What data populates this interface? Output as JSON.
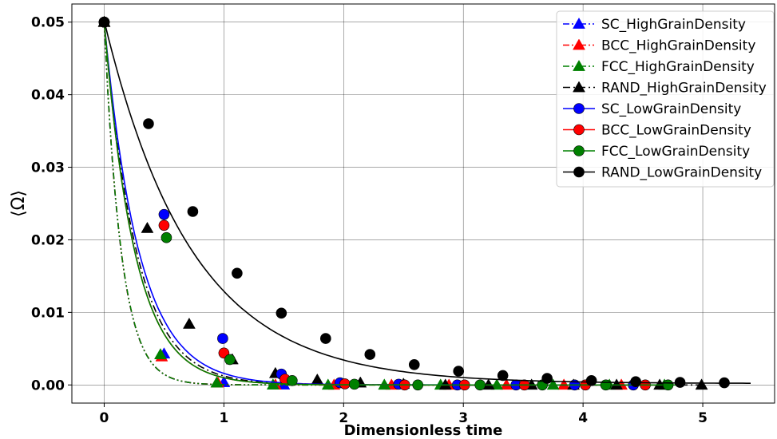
{
  "chart_data": {
    "type": "line",
    "title": "",
    "xlabel": "Dimensionless time",
    "ylabel": "⟨Ω⟩",
    "xlim": [
      -0.27,
      5.6
    ],
    "ylim": [
      -0.0025,
      0.0525
    ],
    "xticks": [
      0,
      1,
      2,
      3,
      4,
      5
    ],
    "xtick_labels": [
      "0",
      "1",
      "2",
      "3",
      "4",
      "5"
    ],
    "yticks": [
      0.0,
      0.01,
      0.02,
      0.03,
      0.04,
      0.05
    ],
    "ytick_labels": [
      "0.00",
      "0.01",
      "0.02",
      "0.03",
      "0.04",
      "0.05"
    ],
    "grid": true,
    "legend_position": "top-right",
    "series": [
      {
        "name": "SC_HighGrainDensity",
        "color": "#0000ff",
        "marker": "triangle",
        "linestyle": "dash-dot-dot",
        "decay": 0.142,
        "x_end": 1.55,
        "x": [
          0,
          0.5,
          1.0,
          1.5
        ],
        "y": [
          0.05,
          0.0043,
          0.00036,
          3e-05
        ]
      },
      {
        "name": "BCC_HighGrainDensity",
        "color": "#ff0000",
        "marker": "triangle",
        "linestyle": "dash-dot-dot",
        "decay": 0.142,
        "x_end": 4.4,
        "x": [
          0,
          0.48,
          0.95,
          1.43,
          1.92,
          2.4,
          2.88,
          3.36,
          3.84,
          4.32
        ],
        "y": [
          0.05,
          0.0039,
          0.0003,
          2e-05,
          0.0,
          0.0,
          0.0,
          0.0,
          0.0,
          0.0
        ]
      },
      {
        "name": "FCC_HighGrainDensity",
        "color": "#008000",
        "marker": "triangle",
        "linestyle": "dash-dot-dot",
        "decay": 0.142,
        "x_end": 4.8,
        "x": [
          0,
          0.47,
          0.94,
          1.41,
          1.87,
          2.34,
          2.81,
          3.28,
          3.75,
          4.22,
          4.68
        ],
        "y": [
          0.05,
          0.0042,
          0.0003,
          2e-05,
          0.0,
          0.0,
          0.0,
          0.0,
          0.0,
          0.0,
          0.0
        ]
      },
      {
        "name": "RAND_HighGrainDensity",
        "color": "#000000",
        "marker": "triangle",
        "linestyle": "dash-dot",
        "decay": 0.27,
        "x_end": 5.0,
        "x": [
          0,
          0.36,
          0.71,
          1.07,
          1.43,
          1.78,
          2.14,
          2.5,
          2.85,
          3.21,
          3.57,
          3.92,
          4.28,
          4.64,
          4.99
        ],
        "y": [
          0.05,
          0.0216,
          0.0084,
          0.0035,
          0.0016,
          0.0007,
          0.0003,
          0.00013,
          0.0,
          0.0,
          0.0,
          0.0,
          0.0,
          0.0,
          0.0
        ]
      },
      {
        "name": "SC_LowGrainDensity",
        "color": "#0000ff",
        "marker": "circle",
        "linestyle": "solid",
        "decay": 0.29,
        "x_end": 4.5,
        "x": [
          0,
          0.5,
          0.99,
          1.48,
          1.97,
          2.46,
          2.95,
          3.44,
          3.93,
          4.42
        ],
        "y": [
          0.05,
          0.0235,
          0.0064,
          0.0015,
          0.0003,
          0.0001,
          0.0,
          0.0,
          0.0,
          0.0
        ]
      },
      {
        "name": "BCC_LowGrainDensity",
        "color": "#ff0000",
        "marker": "circle",
        "linestyle": "solid",
        "decay": 0.255,
        "x_end": 4.6,
        "x": [
          0,
          0.5,
          1.0,
          1.51,
          2.01,
          2.51,
          3.01,
          3.51,
          4.02,
          4.52
        ],
        "y": [
          0.05,
          0.022,
          0.0044,
          0.0008,
          0.00015,
          0.0,
          0.0,
          0.0,
          0.0,
          0.0
        ]
      },
      {
        "name": "FCC_LowGrainDensity",
        "color": "#008000",
        "marker": "circle",
        "linestyle": "solid",
        "decay": 0.255,
        "x_end": 4.75,
        "x": [
          0,
          0.52,
          1.05,
          1.57,
          2.09,
          2.62,
          3.14,
          3.66,
          4.19,
          4.71
        ],
        "y": [
          0.05,
          0.0203,
          0.0035,
          0.0006,
          0.0001,
          0.0,
          0.0,
          0.0,
          0.0,
          0.0
        ]
      },
      {
        "name": "RAND_LowGrainDensity",
        "color": "#000000",
        "marker": "circle",
        "linestyle": "solid",
        "decay": 0.73,
        "x_end": 5.4,
        "x": [
          0,
          0.37,
          0.74,
          1.11,
          1.48,
          1.85,
          2.22,
          2.59,
          2.96,
          3.33,
          3.7,
          4.07,
          4.44,
          4.81,
          5.18
        ],
        "y": [
          0.05,
          0.036,
          0.0239,
          0.0154,
          0.0099,
          0.0064,
          0.0042,
          0.0028,
          0.0019,
          0.0013,
          0.0009,
          0.0006,
          0.00045,
          0.00035,
          0.0003
        ]
      }
    ]
  }
}
